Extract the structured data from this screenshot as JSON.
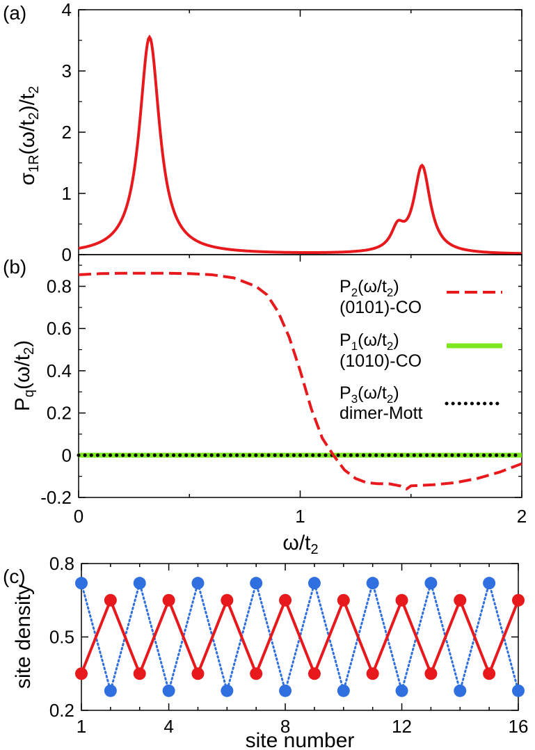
{
  "chart_data": [
    {
      "panel_label": "(a)",
      "type": "line",
      "ylabel_html": "σ<sub>1R</sub>(ω/t<sub>2</sub>)/t<sub>2</sub>",
      "xlim": [
        0,
        2
      ],
      "ylim": [
        0,
        4
      ],
      "ytick_labels": [
        "0",
        "1",
        "2",
        "3",
        "4"
      ],
      "series": [
        {
          "color": "#e8191c",
          "style": "solid",
          "peaks": [
            {
              "center": 0.32,
              "amplitude": 3.55,
              "width": 0.055
            },
            {
              "center": 1.44,
              "amplitude": 0.34,
              "width": 0.035
            },
            {
              "center": 1.55,
              "amplitude": 1.42,
              "width": 0.045
            }
          ],
          "baseline": 0.0
        }
      ]
    },
    {
      "panel_label": "(b)",
      "type": "line",
      "ylabel_html": "P<sub>q</sub>(ω/t<sub>2</sub>)",
      "xlabel_html": "ω/t<sub>2</sub>",
      "xlim": [
        0,
        2
      ],
      "ylim": [
        -0.2,
        0.95
      ],
      "ytick_labels": [
        "-0.2",
        "0",
        "0.2",
        "0.4",
        "0.6",
        "0.8"
      ],
      "xtick_labels": [
        "0",
        "1",
        "2"
      ],
      "series": [
        {
          "legend_html": "P<sub>2</sub>(ω/t<sub>2</sub>)",
          "legend_sub": "(0101)-CO",
          "color": "#e8191c",
          "style": "dashed",
          "x": [
            0,
            0.1,
            0.2,
            0.3,
            0.4,
            0.5,
            0.6,
            0.7,
            0.8,
            0.85,
            0.9,
            0.95,
            1.0,
            1.05,
            1.1,
            1.15,
            1.2,
            1.25,
            1.3,
            1.35,
            1.4,
            1.45,
            1.48,
            1.5,
            1.6,
            1.7,
            1.8,
            1.9,
            2.0
          ],
          "y": [
            0.855,
            0.86,
            0.862,
            0.862,
            0.862,
            0.86,
            0.855,
            0.84,
            0.8,
            0.76,
            0.68,
            0.56,
            0.4,
            0.22,
            0.08,
            0.0,
            -0.07,
            -0.11,
            -0.13,
            -0.135,
            -0.135,
            -0.145,
            -0.16,
            -0.145,
            -0.14,
            -0.13,
            -0.11,
            -0.08,
            -0.04
          ]
        },
        {
          "legend_html": "P<sub>1</sub>(ω/t<sub>2</sub>)",
          "legend_sub": "(1010)-CO",
          "color": "#7ee81e",
          "style": "thick",
          "x": [
            0,
            2
          ],
          "y": [
            0,
            0
          ]
        },
        {
          "legend_html": "P<sub>3</sub>(ω/t<sub>2</sub>)",
          "legend_sub": "dimer-Mott",
          "color": "#000000",
          "style": "dotted",
          "x": [
            0,
            2
          ],
          "y": [
            0,
            0
          ]
        }
      ]
    },
    {
      "panel_label": "(c)",
      "type": "line",
      "ylabel": "site density",
      "xlabel": "site number",
      "xlim": [
        1,
        16
      ],
      "ylim": [
        0.2,
        0.8
      ],
      "ytick_labels": [
        "0.2",
        "0.5",
        "0.8"
      ],
      "xtick_labels": [
        "1",
        "4",
        "8",
        "12",
        "16"
      ],
      "series": [
        {
          "color": "#e8191c",
          "style": "solid-markers",
          "x": [
            1,
            2,
            3,
            4,
            5,
            6,
            7,
            8,
            9,
            10,
            11,
            12,
            13,
            14,
            15,
            16
          ],
          "y": [
            0.35,
            0.65,
            0.35,
            0.65,
            0.35,
            0.65,
            0.35,
            0.65,
            0.35,
            0.65,
            0.35,
            0.65,
            0.35,
            0.65,
            0.35,
            0.65
          ]
        },
        {
          "color": "#2f6fe0",
          "style": "dotted-markers",
          "x": [
            1,
            2,
            3,
            4,
            5,
            6,
            7,
            8,
            9,
            10,
            11,
            12,
            13,
            14,
            15,
            16
          ],
          "y": [
            0.72,
            0.28,
            0.72,
            0.28,
            0.72,
            0.28,
            0.72,
            0.28,
            0.72,
            0.28,
            0.72,
            0.28,
            0.72,
            0.28,
            0.72,
            0.28
          ]
        }
      ]
    }
  ]
}
